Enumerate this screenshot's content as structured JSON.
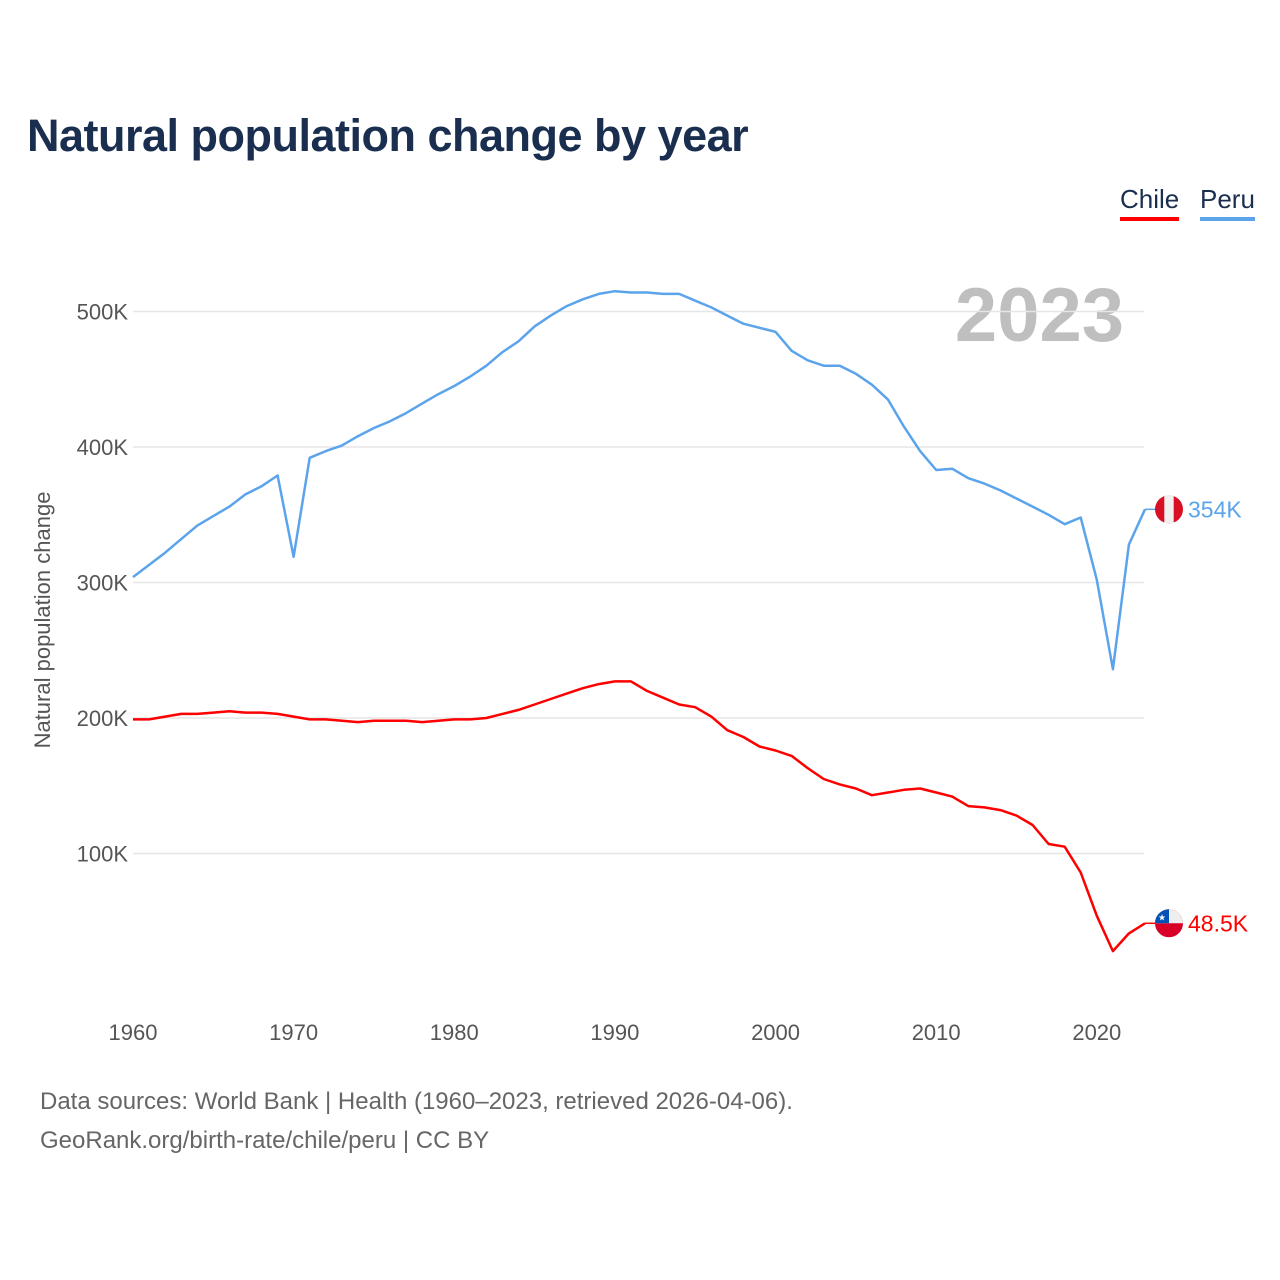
{
  "chart_data": {
    "type": "line",
    "title": "Natural population change by year",
    "ylabel": "Natural population change",
    "xlabel": "",
    "xlim": [
      1960,
      2023
    ],
    "ylim": [
      0,
      550000
    ],
    "grid": true,
    "legend_position": "top-right",
    "current_year": "2023",
    "x_ticks": [
      1960,
      1970,
      1980,
      1990,
      2000,
      2010,
      2020
    ],
    "x_tick_labels": [
      "1960",
      "1970",
      "1980",
      "1990",
      "2000",
      "2010",
      "2020"
    ],
    "y_ticks": [
      100000,
      200000,
      300000,
      400000,
      500000
    ],
    "y_tick_labels": [
      "100K",
      "200K",
      "300K",
      "400K",
      "500K"
    ],
    "x": [
      1960,
      1961,
      1962,
      1963,
      1964,
      1965,
      1966,
      1967,
      1968,
      1969,
      1970,
      1971,
      1972,
      1973,
      1974,
      1975,
      1976,
      1977,
      1978,
      1979,
      1980,
      1981,
      1982,
      1983,
      1984,
      1985,
      1986,
      1987,
      1988,
      1989,
      1990,
      1991,
      1992,
      1993,
      1994,
      1995,
      1996,
      1997,
      1998,
      1999,
      2000,
      2001,
      2002,
      2003,
      2004,
      2005,
      2006,
      2007,
      2008,
      2009,
      2010,
      2011,
      2012,
      2013,
      2014,
      2015,
      2016,
      2017,
      2018,
      2019,
      2020,
      2021,
      2022,
      2023
    ],
    "series": [
      {
        "name": "Chile",
        "color": "#ff0000",
        "end_label": "48.5K",
        "values": [
          199,
          199,
          201,
          203,
          203,
          204,
          205,
          204,
          204,
          203,
          201,
          199,
          199,
          198,
          197,
          198,
          198,
          198,
          197,
          198,
          199,
          199,
          200,
          203,
          206,
          210,
          214,
          218,
          222,
          225,
          227,
          227,
          220,
          215,
          210,
          208,
          201,
          191,
          186,
          179,
          176,
          172,
          163,
          155,
          151,
          148,
          143,
          145,
          147,
          148,
          145,
          142,
          135,
          134,
          132,
          128,
          121,
          107,
          105,
          86,
          54,
          28,
          41,
          48.5
        ]
      },
      {
        "name": "Peru",
        "color": "#5ba4ec",
        "end_label": "354K",
        "values": [
          304,
          313,
          322,
          332,
          342,
          349,
          356,
          365,
          371,
          379,
          319,
          392,
          397,
          401,
          408,
          414,
          419,
          425,
          432,
          439,
          445,
          452,
          460,
          470,
          478,
          489,
          497,
          504,
          509,
          513,
          515,
          514,
          514,
          513,
          513,
          508,
          503,
          497,
          491,
          488,
          485,
          471,
          464,
          460,
          460,
          454,
          446,
          435,
          415,
          397,
          383,
          384,
          377,
          373,
          368,
          362,
          356,
          350,
          343,
          348,
          302,
          236,
          328,
          354
        ]
      }
    ],
    "value_unit_multiplier": 1000
  },
  "legend": {
    "chile": "Chile",
    "peru": "Peru"
  },
  "footer": {
    "line1": "Data sources: World Bank | Health (1960–2023, retrieved 2026-04-06).",
    "line2": "GeoRank.org/birth-rate/chile/peru | CC BY"
  }
}
